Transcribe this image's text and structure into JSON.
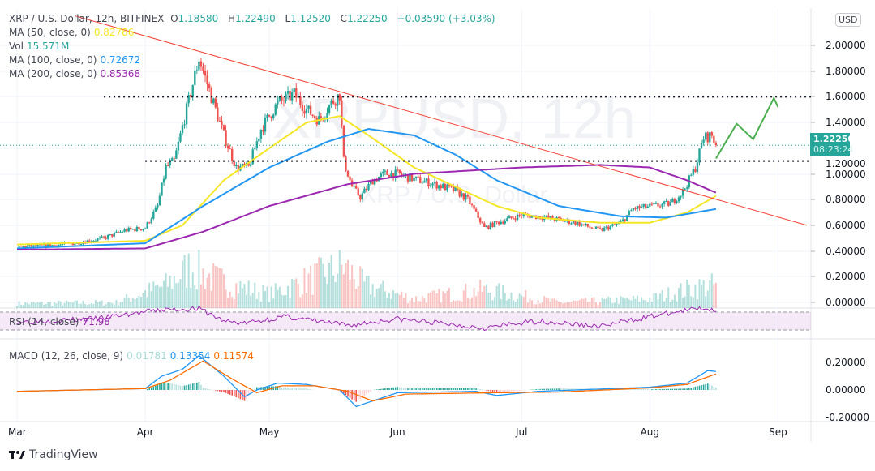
{
  "header": {
    "symbol": "XRP / U.S. Dollar, 12h, BITFINEX",
    "open_label": "O",
    "open": "1.18580",
    "high_label": "H",
    "high": "1.22490",
    "low_label": "L",
    "low": "1.12520",
    "close_label": "C",
    "close": "1.22250",
    "change": "+0.03590 (+3.03%)"
  },
  "indicators": {
    "ma50": {
      "label": "MA (50, close, 0)",
      "value": "0.82786",
      "color": "#f5e626"
    },
    "vol": {
      "label": "Vol",
      "value": "15.571M"
    },
    "ma100": {
      "label": "MA (100, close, 0)",
      "value": "0.72672",
      "color": "#2196f3"
    },
    "ma200": {
      "label": "MA (200, close, 0)",
      "value": "0.85368",
      "color": "#9c27b0"
    },
    "rsi": {
      "label": "RSI (14, close)",
      "value": "71.98",
      "color": "#9c27b0"
    },
    "macd": {
      "label": "MACD (12, 26, close, 9)",
      "hist": "0.01781",
      "macd": "0.13354",
      "signal": "0.11574",
      "macd_color": "#2196f3",
      "signal_color": "#ff6d00"
    }
  },
  "currency_button": "USD",
  "last_price": {
    "value": "1.22250",
    "countdown": "08:23:24",
    "color": "#26a69a"
  },
  "watermark": "XRPUSD, 12h",
  "watermark_sub": "XRP / U.S. Dollar",
  "brand": "TradingView",
  "chart_data": {
    "type": "candlestick",
    "colors": {
      "up": "#26a69a",
      "down": "#ef5350",
      "trendline": "#f44336",
      "projection": "#4caf50"
    },
    "x_ticks": [
      "Mar",
      "Apr",
      "May",
      "Jun",
      "Jul",
      "Aug",
      "Sep"
    ],
    "price_axis": {
      "ticks": [
        "2.00000",
        "1.80000",
        "1.60000",
        "1.40000",
        "1.20000",
        "1.00000",
        "0.80000",
        "0.60000",
        "0.40000",
        "0.20000",
        "0.00000"
      ],
      "ylim": [
        0,
        2.2
      ]
    },
    "macd_axis": {
      "ticks": [
        "0.20000",
        "0.00000",
        "-0.20000"
      ],
      "ylim": [
        -0.22,
        0.28
      ]
    },
    "price_close": [
      [
        "Mar 1",
        0.43
      ],
      [
        "Mar 8",
        0.44
      ],
      [
        "Mar 15",
        0.46
      ],
      [
        "Mar 22",
        0.5
      ],
      [
        "Mar 27",
        0.56
      ],
      [
        "Apr 1",
        0.58
      ],
      [
        "Apr 4",
        0.75
      ],
      [
        "Apr 6",
        1.05
      ],
      [
        "Apr 8",
        1.1
      ],
      [
        "Apr 11",
        1.5
      ],
      [
        "Apr 14",
        1.9
      ],
      [
        "Apr 17",
        1.6
      ],
      [
        "Apr 20",
        1.3
      ],
      [
        "Apr 23",
        1.05
      ],
      [
        "Apr 26",
        1.05
      ],
      [
        "Apr 29",
        1.35
      ],
      [
        "May 3",
        1.55
      ],
      [
        "May 7",
        1.62
      ],
      [
        "May 10",
        1.5
      ],
      [
        "May 13",
        1.42
      ],
      [
        "May 16",
        1.55
      ],
      [
        "May 18",
        1.62
      ],
      [
        "May 19",
        1.1
      ],
      [
        "May 21",
        0.9
      ],
      [
        "May 23",
        0.82
      ],
      [
        "May 26",
        0.95
      ],
      [
        "May 29",
        1.0
      ],
      [
        "Jun 1",
        1.0
      ],
      [
        "Jun 5",
        0.96
      ],
      [
        "Jun 10",
        0.92
      ],
      [
        "Jun 15",
        0.87
      ],
      [
        "Jun 18",
        0.8
      ],
      [
        "Jun 22",
        0.58
      ],
      [
        "Jun 25",
        0.62
      ],
      [
        "Jul 1",
        0.68
      ],
      [
        "Jul 7",
        0.66
      ],
      [
        "Jul 14",
        0.62
      ],
      [
        "Jul 20",
        0.56
      ],
      [
        "Jul 25",
        0.62
      ],
      [
        "Jul 28",
        0.73
      ],
      [
        "Aug 2",
        0.75
      ],
      [
        "Aug 6",
        0.77
      ],
      [
        "Aug 9",
        0.86
      ],
      [
        "Aug 12",
        1.05
      ],
      [
        "Aug 14",
        1.28
      ],
      [
        "Aug 16",
        1.3
      ],
      [
        "Aug 17",
        1.2225
      ]
    ],
    "ma50": [
      [
        "Mar 1",
        0.45
      ],
      [
        "Apr 1",
        0.48
      ],
      [
        "Apr 10",
        0.6
      ],
      [
        "Apr 20",
        0.95
      ],
      [
        "May 1",
        1.2
      ],
      [
        "May 10",
        1.4
      ],
      [
        "May 18",
        1.45
      ],
      [
        "May 25",
        1.3
      ],
      [
        "Jun 5",
        1.05
      ],
      [
        "Jun 15",
        0.9
      ],
      [
        "Jun 25",
        0.75
      ],
      [
        "Jul 5",
        0.66
      ],
      [
        "Jul 20",
        0.62
      ],
      [
        "Aug 1",
        0.62
      ],
      [
        "Aug 10",
        0.7
      ],
      [
        "Aug 17",
        0.828
      ]
    ],
    "ma100": [
      [
        "Mar 1",
        0.42
      ],
      [
        "Apr 1",
        0.46
      ],
      [
        "Apr 15",
        0.75
      ],
      [
        "May 1",
        1.05
      ],
      [
        "May 15",
        1.25
      ],
      [
        "May 25",
        1.35
      ],
      [
        "Jun 5",
        1.3
      ],
      [
        "Jun 15",
        1.15
      ],
      [
        "Jun 25",
        0.95
      ],
      [
        "Jul 10",
        0.75
      ],
      [
        "Jul 25",
        0.67
      ],
      [
        "Aug 5",
        0.66
      ],
      [
        "Aug 17",
        0.727
      ]
    ],
    "ma200": [
      [
        "Mar 1",
        0.41
      ],
      [
        "Apr 1",
        0.42
      ],
      [
        "Apr 15",
        0.55
      ],
      [
        "May 1",
        0.75
      ],
      [
        "May 20",
        0.92
      ],
      [
        "Jun 5",
        1.0
      ],
      [
        "Jul 1",
        1.05
      ],
      [
        "Jul 20",
        1.07
      ],
      [
        "Aug 1",
        1.05
      ],
      [
        "Aug 10",
        0.95
      ],
      [
        "Aug 17",
        0.854
      ]
    ],
    "trendline": [
      [
        "Mar 15",
        2.23
      ],
      [
        "Sep 8",
        0.6
      ]
    ],
    "levels": [
      {
        "value": 1.6,
        "from": "Mar 22"
      },
      {
        "value": 1.1,
        "from": "Apr 1"
      }
    ],
    "projection": [
      [
        "Aug 17",
        1.12
      ],
      [
        "Aug 22",
        1.39
      ],
      [
        "Aug 26",
        1.27
      ],
      [
        "Aug 31",
        1.59
      ],
      [
        "Sep 1",
        1.52
      ]
    ],
    "volume_relative": [
      [
        "Mar 1",
        0.1
      ],
      [
        "Mar 25",
        0.12
      ],
      [
        "Apr 6",
        0.5
      ],
      [
        "Apr 12",
        0.9
      ],
      [
        "Apr 16",
        0.7
      ],
      [
        "Apr 22",
        0.5
      ],
      [
        "May 1",
        0.3
      ],
      [
        "May 19",
        0.9
      ],
      [
        "May 24",
        0.5
      ],
      [
        "Jun 5",
        0.2
      ],
      [
        "Jun 22",
        0.4
      ],
      [
        "Jul 10",
        0.12
      ],
      [
        "Aug 1",
        0.2
      ],
      [
        "Aug 12",
        0.45
      ],
      [
        "Aug 17",
        0.5
      ]
    ],
    "rsi": [
      [
        "Mar 1",
        48
      ],
      [
        "Mar 20",
        55
      ],
      [
        "Apr 5",
        75
      ],
      [
        "Apr 14",
        78
      ],
      [
        "Apr 20",
        50
      ],
      [
        "Apr 25",
        45
      ],
      [
        "May 5",
        60
      ],
      [
        "May 20",
        40
      ],
      [
        "Jun 1",
        55
      ],
      [
        "Jun 22",
        35
      ],
      [
        "Jul 5",
        50
      ],
      [
        "Jul 20",
        38
      ],
      [
        "Aug 1",
        60
      ],
      [
        "Aug 14",
        80
      ],
      [
        "Aug 17",
        72
      ]
    ],
    "rsi_band": [
      30,
      70
    ],
    "macd_line": [
      [
        "Mar 1",
        -0.01
      ],
      [
        "Apr 1",
        0.01
      ],
      [
        "Apr 5",
        0.1
      ],
      [
        "Apr 10",
        0.15
      ],
      [
        "Apr 14",
        0.25
      ],
      [
        "Apr 20",
        0.1
      ],
      [
        "Apr 25",
        -0.05
      ],
      [
        "Apr 28",
        0.0
      ],
      [
        "May 3",
        0.05
      ],
      [
        "May 10",
        0.04
      ],
      [
        "May 18",
        0.0
      ],
      [
        "May 22",
        -0.12
      ],
      [
        "May 26",
        -0.08
      ],
      [
        "Jun 1",
        -0.02
      ],
      [
        "Jun 20",
        -0.01
      ],
      [
        "Jun 25",
        -0.04
      ],
      [
        "Jul 5",
        -0.01
      ],
      [
        "Aug 1",
        0.02
      ],
      [
        "Aug 10",
        0.05
      ],
      [
        "Aug 15",
        0.14
      ],
      [
        "Aug 17",
        0.134
      ]
    ],
    "signal_line": [
      [
        "Mar 1",
        -0.01
      ],
      [
        "Apr 1",
        0.01
      ],
      [
        "Apr 7",
        0.07
      ],
      [
        "Apr 15",
        0.21
      ],
      [
        "Apr 22",
        0.08
      ],
      [
        "Apr 28",
        -0.02
      ],
      [
        "May 4",
        0.03
      ],
      [
        "May 12",
        0.03
      ],
      [
        "May 20",
        -0.01
      ],
      [
        "May 26",
        -0.08
      ],
      [
        "Jun 3",
        -0.03
      ],
      [
        "Jun 25",
        -0.02
      ],
      [
        "Jul 10",
        -0.015
      ],
      [
        "Aug 1",
        0.015
      ],
      [
        "Aug 10",
        0.04
      ],
      [
        "Aug 17",
        0.116
      ]
    ]
  }
}
